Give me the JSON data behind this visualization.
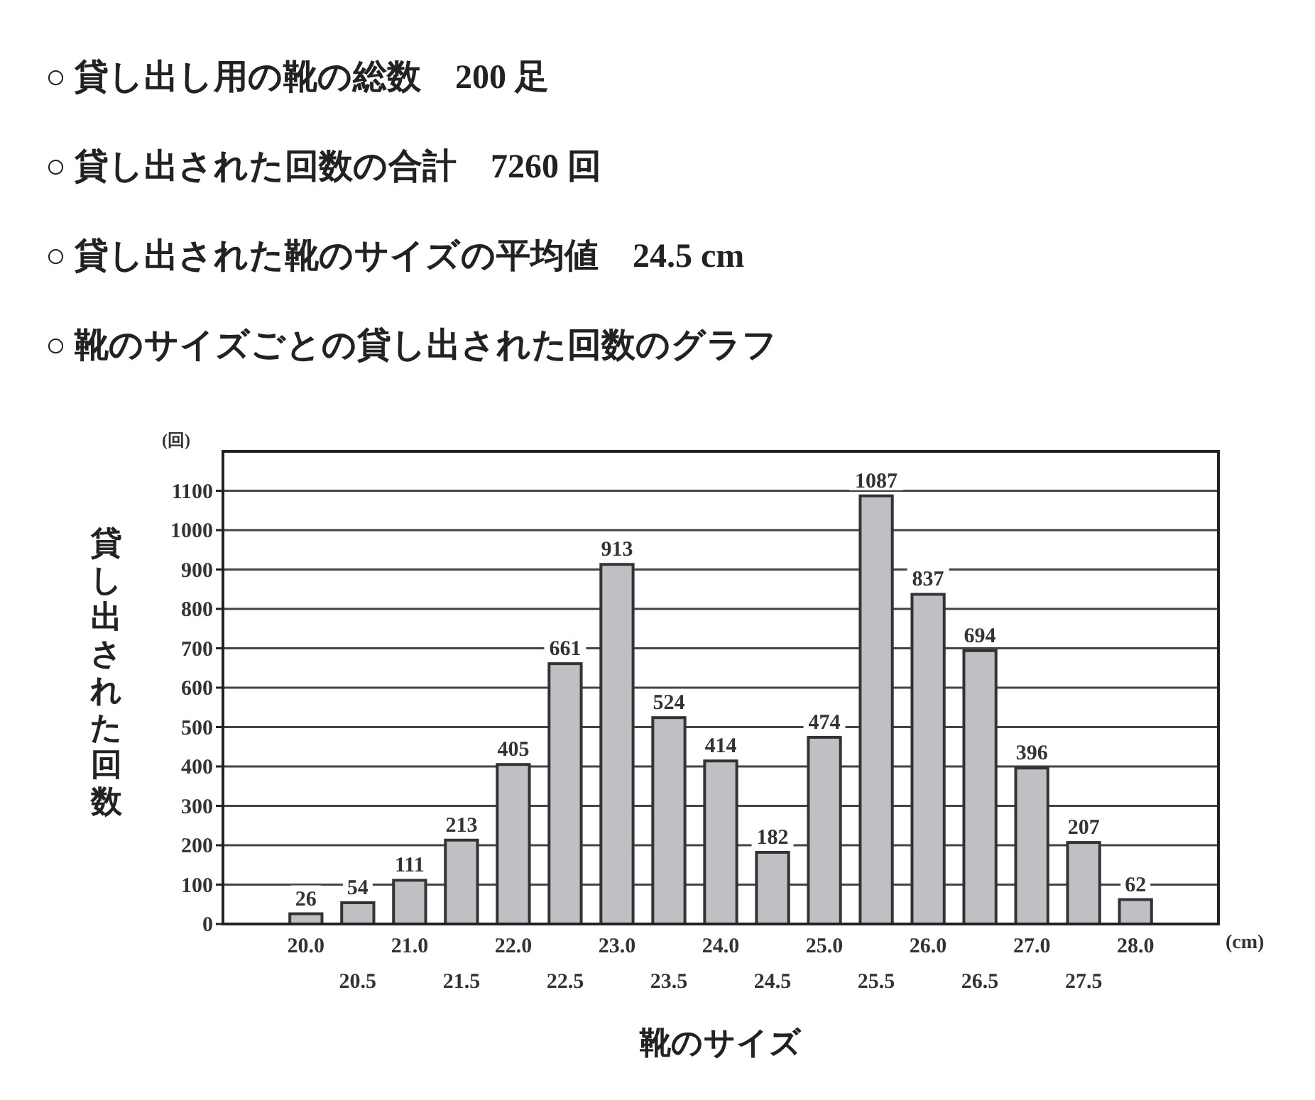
{
  "chart_data": {
    "type": "bar",
    "annotations": [
      "○ 貸し出し用の靴の総数　200 足",
      "○ 貸し出された回数の合計　7260 回",
      "○ 貸し出された靴のサイズの平均値　24.5 cm",
      "○ 靴のサイズごとの貸し出された回数のグラフ",
      "(回)",
      "(cm)"
    ],
    "xlabel": "靴のサイズ",
    "ylabel": "貸し出された回数",
    "categories": [
      "20.0",
      "20.5",
      "21.0",
      "21.5",
      "22.0",
      "22.5",
      "23.0",
      "23.5",
      "24.0",
      "24.5",
      "25.0",
      "25.5",
      "26.0",
      "26.5",
      "27.0",
      "27.5",
      "28.0"
    ],
    "values": [
      26,
      54,
      111,
      213,
      405,
      661,
      913,
      524,
      414,
      182,
      474,
      1087,
      837,
      694,
      396,
      207,
      62
    ],
    "color": "#bfc0c4",
    "ylim": [
      0,
      1200
    ],
    "yticks": [
      0,
      100,
      200,
      300,
      400,
      500,
      600,
      700,
      800,
      900,
      1000,
      1100
    ],
    "grid": "y",
    "data_labels": true
  }
}
